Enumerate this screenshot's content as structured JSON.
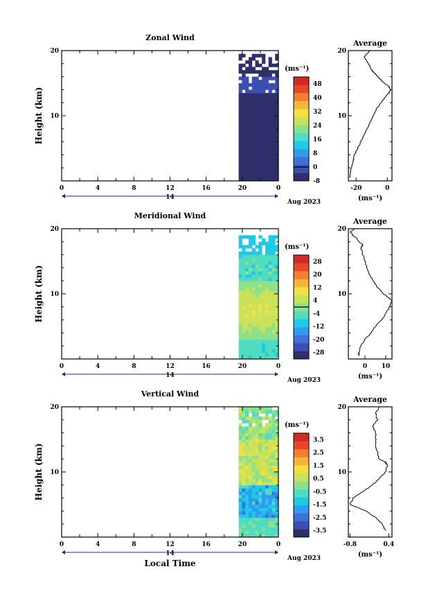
{
  "figure": {
    "x_axis_label": "Local Time",
    "date_label": "Aug 2023",
    "day_label": "14",
    "height_label": "Height (km)",
    "average_title": "Average",
    "unit": "(ms⁻¹)"
  },
  "chart_data": [
    {
      "type": "heatmap",
      "title": "Zonal Wind",
      "ylabel": "Height (km)",
      "xlabel": "",
      "x_ticks": [
        "0",
        "4",
        "8",
        "12",
        "16",
        "20",
        "0"
      ],
      "y_ticks": [
        "10",
        "20"
      ],
      "ylim": [
        0,
        20
      ],
      "xlim_hours": [
        0,
        24
      ],
      "data_coverage_hours": [
        19.6,
        24
      ],
      "colorbar": {
        "unit": "(ms⁻¹)",
        "ticks": [
          "-8",
          "0",
          "8",
          "16",
          "24",
          "32",
          "40",
          "48"
        ],
        "range": [
          -8,
          52
        ],
        "zero_contour": "0"
      },
      "profile": {
        "title": "Average",
        "unit": "(ms⁻¹)",
        "x_ticks": [
          "-20",
          "0"
        ],
        "xlim": [
          -25,
          3
        ],
        "y_ticks": [
          "10",
          "20"
        ],
        "height_km": [
          0.5,
          1,
          2,
          3,
          4,
          5,
          6,
          7,
          8,
          9,
          10,
          11,
          12,
          13,
          13.5,
          14,
          14.5,
          15,
          15.5,
          16,
          16.5,
          17,
          18,
          19,
          19.5,
          20
        ],
        "value": [
          -24,
          -24,
          -23,
          -22,
          -21,
          -19,
          -17,
          -15,
          -13,
          -11,
          -9,
          -7,
          -4,
          -1,
          1,
          2,
          1,
          -2,
          -4,
          -6,
          -8,
          -10,
          -12,
          -15,
          -13,
          -11
        ]
      },
      "cells": {
        "n_cols": 12,
        "n_rows": 40
      }
    },
    {
      "type": "heatmap",
      "title": "Meridional Wind",
      "ylabel": "Height (km)",
      "xlabel": "",
      "x_ticks": [
        "0",
        "4",
        "8",
        "12",
        "16",
        "20",
        "0"
      ],
      "y_ticks": [
        "10",
        "20"
      ],
      "ylim": [
        0,
        20
      ],
      "xlim_hours": [
        0,
        24
      ],
      "data_coverage_hours": [
        19.6,
        24
      ],
      "colorbar": {
        "unit": "(ms⁻¹)",
        "ticks": [
          "-28",
          "-20",
          "-12",
          "-4",
          "4",
          "12",
          "20",
          "28"
        ],
        "range": [
          -32,
          32
        ],
        "zero_contour": "0"
      },
      "profile": {
        "title": "Average",
        "unit": "(ms⁻¹)",
        "x_ticks": [
          "0",
          "10"
        ],
        "xlim": [
          -8,
          13
        ],
        "y_ticks": [
          "10",
          "20"
        ],
        "height_km": [
          0.5,
          1,
          2,
          3,
          4,
          5,
          6,
          7,
          8,
          9,
          10,
          11,
          12,
          13,
          14,
          15,
          16,
          17,
          17.5,
          18,
          18.5,
          19,
          19.5,
          20
        ],
        "value": [
          -3,
          -3,
          -2,
          0,
          3,
          5,
          8,
          10,
          12,
          13,
          9,
          6,
          4,
          2,
          1,
          0,
          -1,
          -2,
          -1,
          -3,
          -4,
          -6,
          -7,
          -5
        ]
      },
      "cells": {
        "n_cols": 12,
        "n_rows": 40
      }
    },
    {
      "type": "heatmap",
      "title": "Vertical Wind",
      "ylabel": "Height (km)",
      "xlabel": "Local Time",
      "x_ticks": [
        "0",
        "4",
        "8",
        "12",
        "16",
        "20",
        "0"
      ],
      "y_ticks": [
        "10",
        "20"
      ],
      "ylim": [
        0,
        20
      ],
      "xlim_hours": [
        0,
        24
      ],
      "data_coverage_hours": [
        19.6,
        24
      ],
      "colorbar": {
        "unit": "(ms⁻¹)",
        "ticks": [
          "-3.5",
          "-2.5",
          "-1.5",
          "-0.5",
          "0.5",
          "1.5",
          "2.5",
          "3.5"
        ],
        "range": [
          -4,
          4
        ],
        "zero_contour": ""
      },
      "profile": {
        "title": "Average",
        "unit": "(ms⁻¹)",
        "x_ticks": [
          "-0.8",
          "0.4"
        ],
        "xlim": [
          -0.85,
          0.5
        ],
        "y_ticks": [
          "10",
          "20"
        ],
        "height_km": [
          1,
          2,
          3,
          4,
          5,
          6,
          7,
          8,
          9,
          10,
          11,
          11.5,
          12,
          13,
          14,
          15,
          16,
          17,
          18,
          19,
          20
        ],
        "value": [
          0.3,
          0.2,
          0.0,
          -0.3,
          -0.8,
          -0.7,
          -0.4,
          -0.1,
          0.1,
          0.3,
          0.35,
          0.3,
          0.1,
          0.05,
          0.0,
          0.0,
          0.0,
          -0.1,
          0.05,
          0.0,
          0.1
        ]
      },
      "cells": {
        "n_cols": 12,
        "n_rows": 40
      }
    }
  ],
  "colormap": [
    "#2e2f6b",
    "#3b4fb0",
    "#3f72d9",
    "#2f9cef",
    "#1fc9e8",
    "#4fdcc0",
    "#8fe08a",
    "#c9e25a",
    "#f4e03f",
    "#f6b43a",
    "#f07f30",
    "#e6472a",
    "#cf2a26"
  ]
}
